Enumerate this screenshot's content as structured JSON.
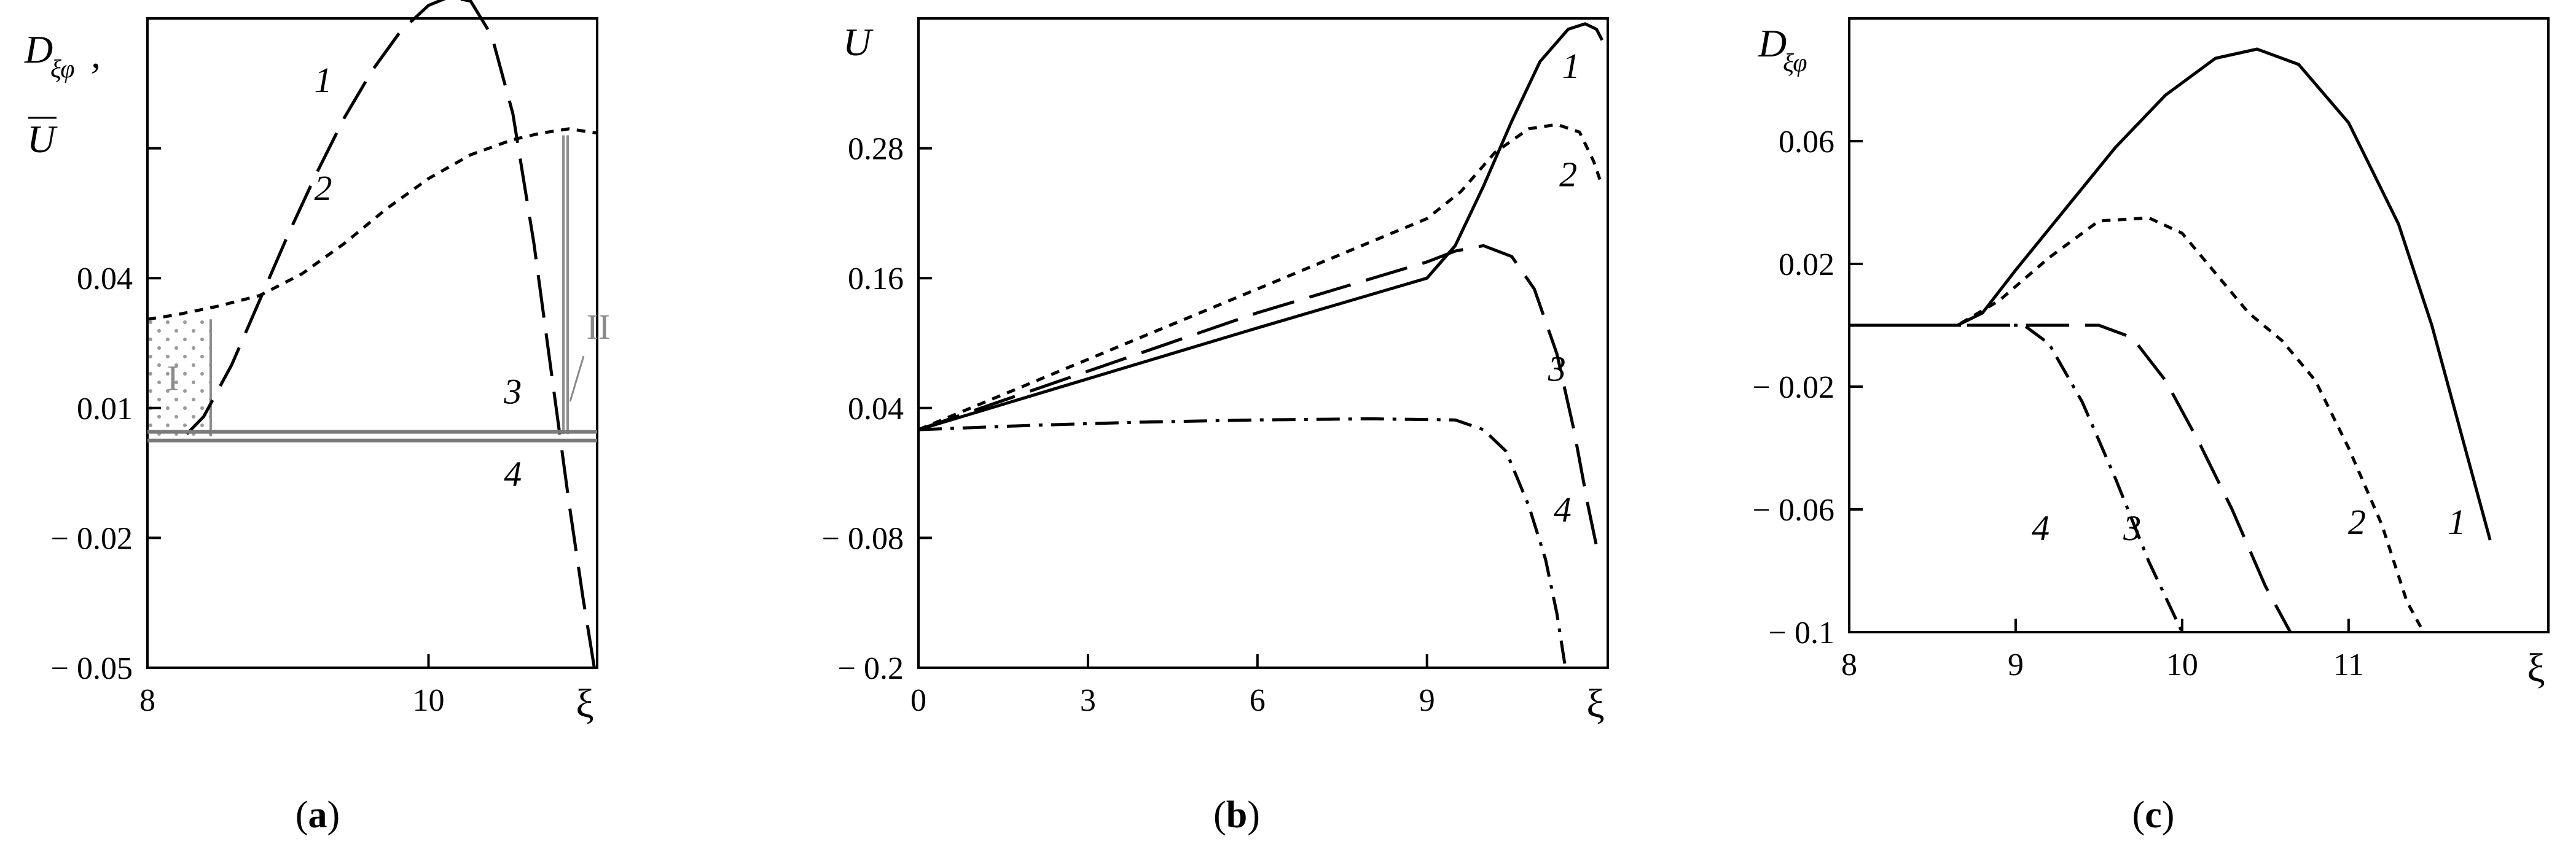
{
  "figure": {
    "panels": [
      {
        "id": "a",
        "label_open": "(",
        "label_letter": "a",
        "label_close": ")"
      },
      {
        "id": "b",
        "label_open": "(",
        "label_letter": "b",
        "label_close": ")"
      },
      {
        "id": "c",
        "label_open": "(",
        "label_letter": "c",
        "label_close": ")"
      }
    ]
  },
  "chart_data": [
    {
      "type": "line",
      "panel": "a",
      "ylabel_main": "D",
      "ylabel_sub": "ξφ",
      "ylabel_sep": ",",
      "ylabel_second": "U",
      "xlabel": "ξ",
      "xlim": [
        8,
        11.2
      ],
      "ylim": [
        -0.05,
        0.1
      ],
      "xticks": [
        "8",
        "10"
      ],
      "xtick_values": [
        8,
        10
      ],
      "yticks": [
        "0.04",
        "0.01",
        "− 0.02",
        "− 0.05"
      ],
      "ytick_values": [
        0.04,
        0.01,
        -0.02,
        -0.05
      ],
      "extra_ygrid_values": [
        0.07
      ],
      "grid": false,
      "regions": [
        {
          "name": "I",
          "x": [
            8.0,
            8.45
          ],
          "y": [
            0.0035,
            0.0305
          ],
          "style": "dotted-fill"
        },
        {
          "name": "II",
          "x": [
            10.96,
            10.99
          ],
          "y": [
            0.004,
            0.073
          ],
          "style": "double-line"
        }
      ],
      "series": [
        {
          "name": "1",
          "style": "long-dash",
          "color": "#000000",
          "x": [
            8.28,
            8.4,
            8.6,
            8.8,
            9.0,
            9.2,
            9.4,
            9.6,
            9.8,
            10.0,
            10.15,
            10.3,
            10.45,
            10.6,
            10.75,
            10.9,
            11.0,
            11.1,
            11.18
          ],
          "y": [
            0.004,
            0.008,
            0.02,
            0.035,
            0.05,
            0.064,
            0.077,
            0.088,
            0.097,
            0.103,
            0.105,
            0.104,
            0.096,
            0.078,
            0.048,
            0.012,
            -0.012,
            -0.034,
            -0.05
          ]
        },
        {
          "name": "2",
          "style": "short-dash",
          "color": "#000000",
          "x": [
            8.0,
            8.2,
            8.5,
            8.8,
            9.1,
            9.4,
            9.7,
            10.0,
            10.3,
            10.6,
            10.8,
            11.0,
            11.1,
            11.2
          ],
          "y": [
            0.0305,
            0.0315,
            0.0335,
            0.036,
            0.041,
            0.048,
            0.056,
            0.063,
            0.0685,
            0.072,
            0.0735,
            0.0745,
            0.074,
            0.0735
          ]
        },
        {
          "name": "3",
          "style": "solid-gray",
          "color": "#7a7a7a",
          "x": [
            8.0,
            11.2
          ],
          "y": [
            0.0045,
            0.0045
          ]
        },
        {
          "name": "4",
          "style": "solid-gray",
          "color": "#7a7a7a",
          "x": [
            8.0,
            11.2
          ],
          "y": [
            0.0025,
            0.0025
          ]
        }
      ]
    },
    {
      "type": "line",
      "panel": "b",
      "ylabel": "U",
      "xlabel": "ξ",
      "xlim": [
        0,
        12.2
      ],
      "ylim": [
        -0.2,
        0.4
      ],
      "xticks": [
        "0",
        "3",
        "6",
        "9"
      ],
      "xtick_values": [
        0,
        3,
        6,
        9
      ],
      "yticks": [
        "0.28",
        "0.16",
        "0.04",
        "− 0.08",
        "− 0.2"
      ],
      "ytick_values": [
        0.28,
        0.16,
        0.04,
        -0.08,
        -0.2
      ],
      "grid": false,
      "series": [
        {
          "name": "1",
          "style": "solid",
          "color": "#000000",
          "x": [
            0,
            3,
            6,
            9,
            9.5,
            10,
            10.5,
            11,
            11.5,
            11.8,
            12.0,
            12.1
          ],
          "y": [
            0.02,
            0.067,
            0.114,
            0.16,
            0.19,
            0.245,
            0.305,
            0.36,
            0.39,
            0.395,
            0.39,
            0.38
          ]
        },
        {
          "name": "2",
          "style": "short-dash",
          "color": "#000000",
          "x": [
            0,
            3,
            6,
            9,
            9.6,
            10.2,
            10.8,
            11.3,
            11.7,
            11.95,
            12.1
          ],
          "y": [
            0.02,
            0.085,
            0.15,
            0.215,
            0.24,
            0.276,
            0.298,
            0.302,
            0.295,
            0.268,
            0.245
          ]
        },
        {
          "name": "3",
          "style": "long-dash",
          "color": "#000000",
          "x": [
            0,
            3,
            6,
            9,
            9.5,
            10.0,
            10.5,
            10.9,
            11.3,
            11.6,
            11.85,
            12.05
          ],
          "y": [
            0.02,
            0.074,
            0.128,
            0.175,
            0.185,
            0.19,
            0.18,
            0.15,
            0.09,
            0.02,
            -0.05,
            -0.1
          ]
        },
        {
          "name": "4",
          "style": "dash-dot",
          "color": "#000000",
          "x": [
            0,
            2,
            4,
            6,
            8,
            9.5,
            10.0,
            10.4,
            10.8,
            11.1,
            11.3,
            11.45
          ],
          "y": [
            0.02,
            0.024,
            0.027,
            0.029,
            0.03,
            0.029,
            0.02,
            0.0,
            -0.05,
            -0.1,
            -0.15,
            -0.2
          ]
        }
      ]
    },
    {
      "type": "line",
      "panel": "c",
      "ylabel_main": "D",
      "ylabel_sub": "ξφ",
      "xlabel": "ξ",
      "xlim": [
        8,
        12.2
      ],
      "ylim": [
        -0.1,
        0.1
      ],
      "xticks": [
        "8",
        "9",
        "10",
        "11"
      ],
      "xtick_values": [
        8,
        9,
        10,
        11
      ],
      "yticks": [
        "0.06",
        "0.02",
        "− 0.02",
        "− 0.06",
        "− 0.1"
      ],
      "ytick_values": [
        0.06,
        0.02,
        -0.02,
        -0.06,
        -0.1
      ],
      "grid": false,
      "series": [
        {
          "name": "1",
          "style": "solid",
          "color": "#000000",
          "x": [
            8.0,
            8.65,
            8.8,
            9.0,
            9.3,
            9.6,
            9.9,
            10.2,
            10.45,
            10.7,
            11.0,
            11.3,
            11.5,
            11.7,
            11.85
          ],
          "y": [
            0.0,
            0.0,
            0.004,
            0.018,
            0.038,
            0.058,
            0.075,
            0.087,
            0.09,
            0.085,
            0.066,
            0.033,
            0.0,
            -0.04,
            -0.07
          ]
        },
        {
          "name": "2",
          "style": "short-dash",
          "color": "#000000",
          "x": [
            8.0,
            8.65,
            8.9,
            9.2,
            9.5,
            9.8,
            10.0,
            10.2,
            10.4,
            10.6,
            10.8,
            11.0,
            11.2,
            11.35,
            11.45
          ],
          "y": [
            0.0,
            0.0,
            0.008,
            0.022,
            0.034,
            0.035,
            0.03,
            0.017,
            0.004,
            -0.005,
            -0.018,
            -0.04,
            -0.065,
            -0.09,
            -0.1
          ]
        },
        {
          "name": "3",
          "style": "long-dash",
          "color": "#000000",
          "x": [
            8.0,
            9.5,
            9.7,
            9.9,
            10.1,
            10.3,
            10.5,
            10.65
          ],
          "y": [
            0.0,
            0.0,
            -0.004,
            -0.018,
            -0.038,
            -0.06,
            -0.085,
            -0.1
          ]
        },
        {
          "name": "4",
          "style": "dash-dot",
          "color": "#000000",
          "x": [
            8.0,
            9.05,
            9.2,
            9.4,
            9.6,
            9.8,
            10.0
          ],
          "y": [
            0.0,
            0.0,
            -0.006,
            -0.025,
            -0.05,
            -0.077,
            -0.1
          ]
        }
      ]
    }
  ]
}
